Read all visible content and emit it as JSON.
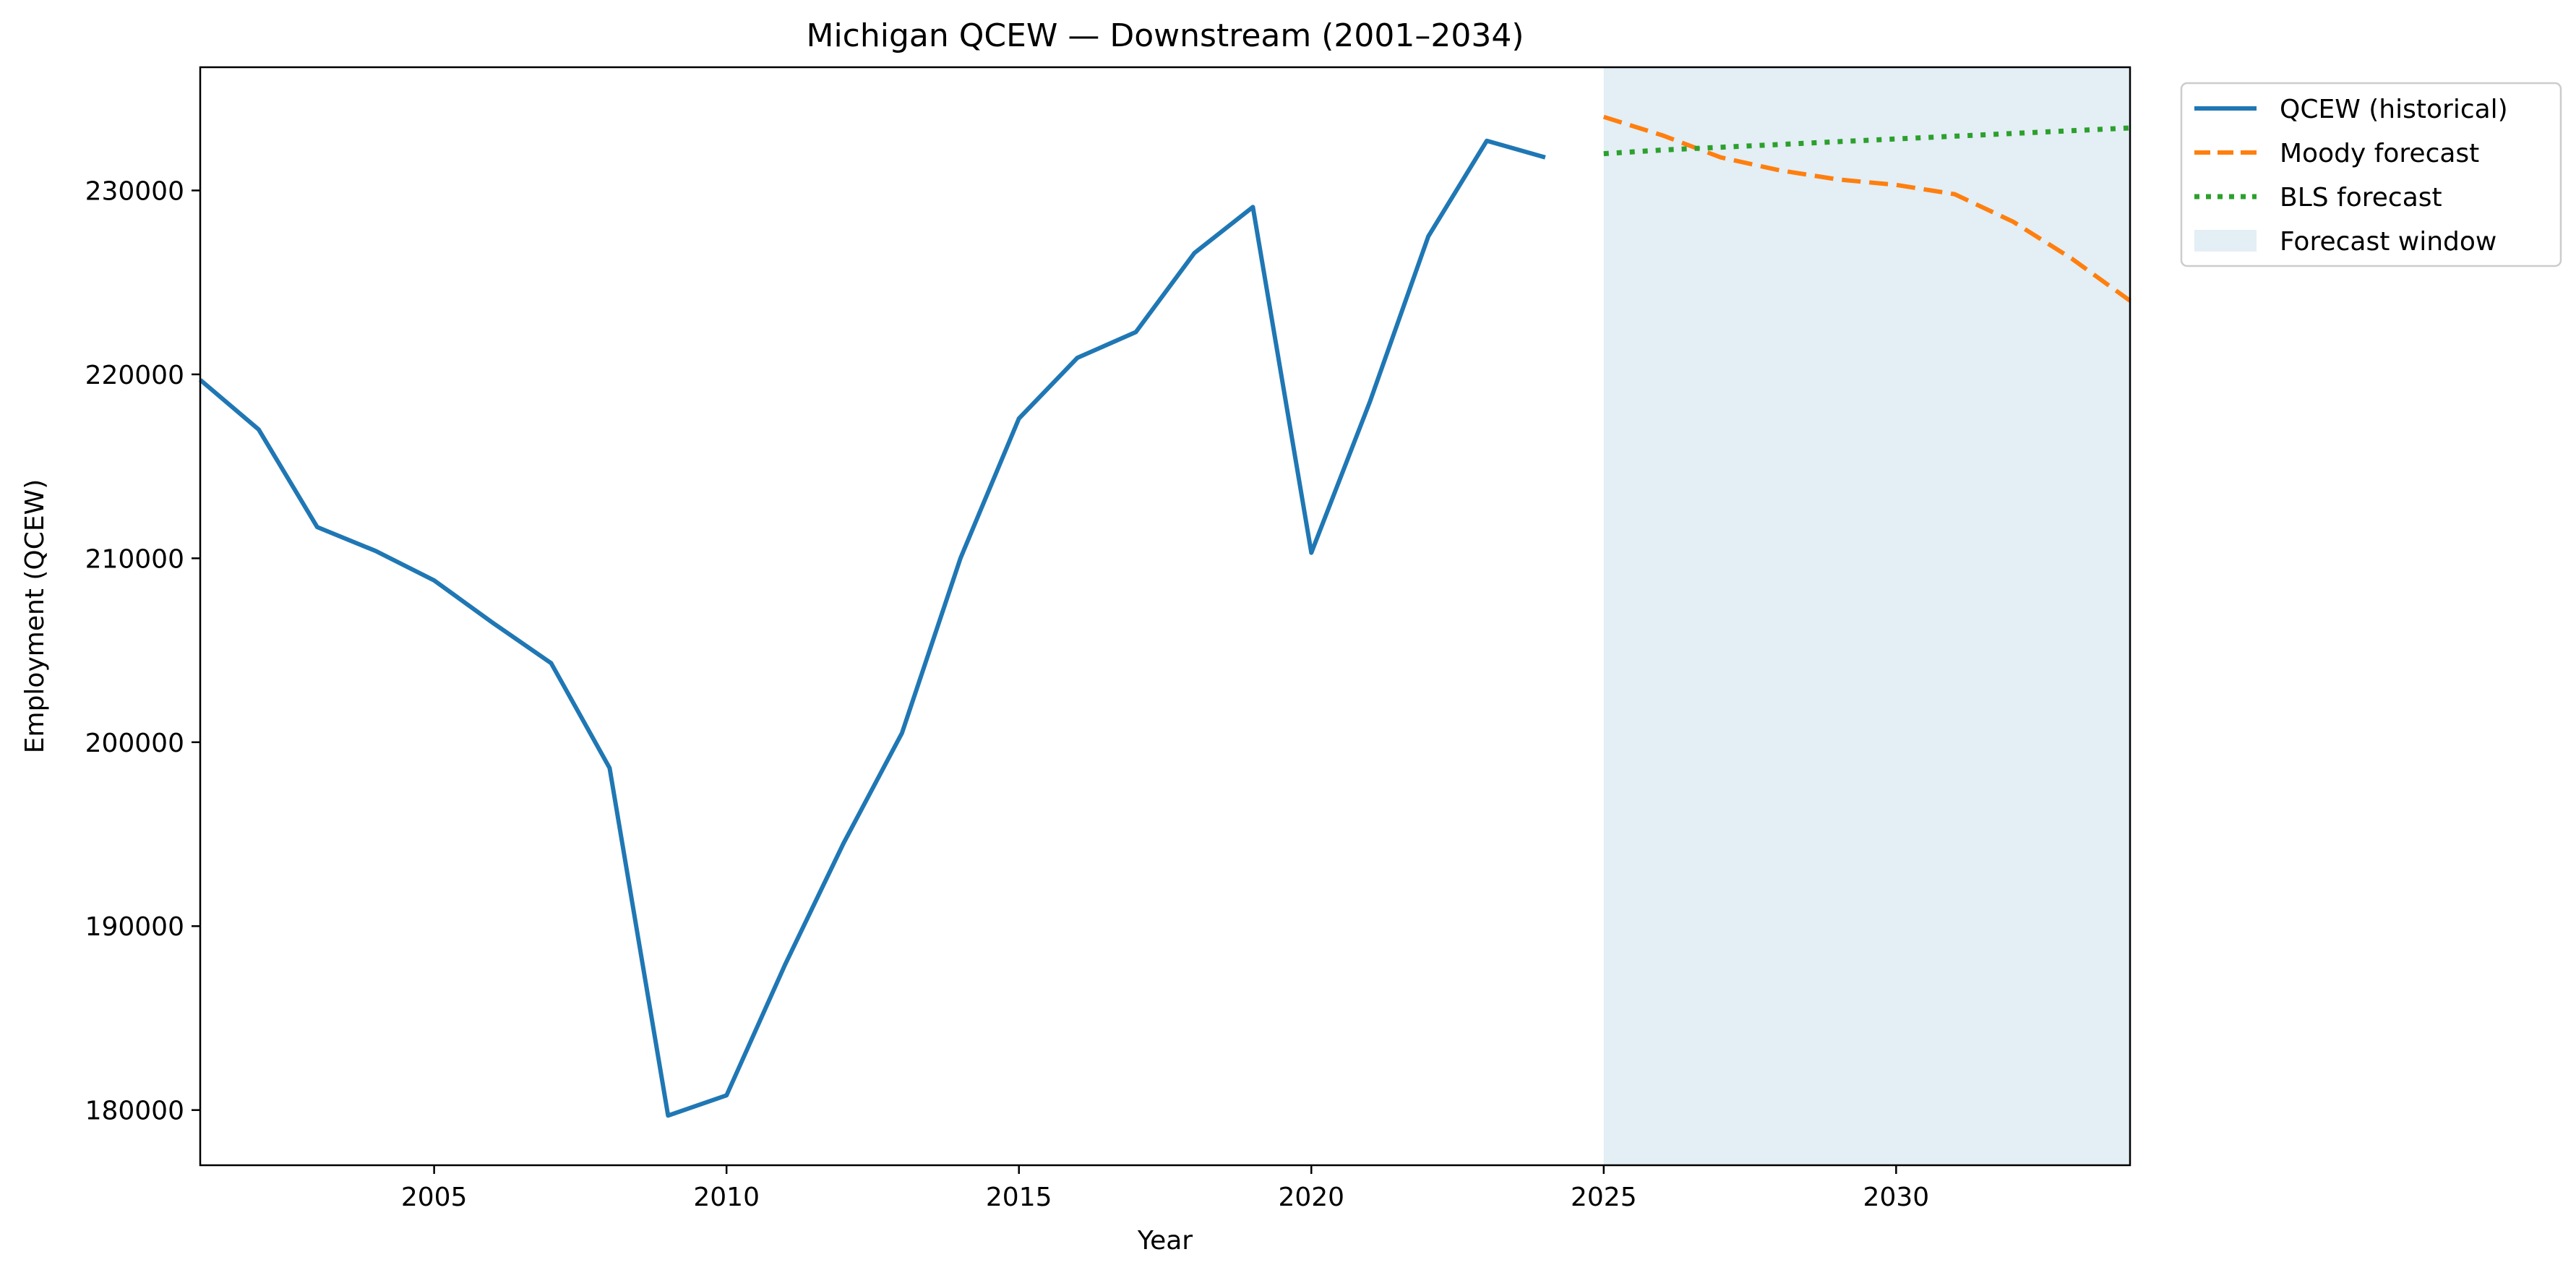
{
  "chart_data": {
    "type": "line",
    "title": "Michigan QCEW — Downstream (2001–2034)",
    "xlabel": "Year",
    "ylabel": "Employment (QCEW)",
    "xlim": [
      2001,
      2034
    ],
    "ylim": [
      177000,
      236700
    ],
    "x_ticks": [
      2005,
      2010,
      2015,
      2020,
      2025,
      2030
    ],
    "y_ticks": [
      180000,
      190000,
      200000,
      210000,
      220000,
      230000
    ],
    "grid": false,
    "legend_position": "outside-top-right",
    "forecast_window": {
      "label": "Forecast window",
      "start": 2025,
      "end": 2034,
      "color": "#e3eef5"
    },
    "series": [
      {
        "name": "QCEW (historical)",
        "style": "solid",
        "color": "#1f77b4",
        "x": [
          2001,
          2002,
          2003,
          2004,
          2005,
          2006,
          2007,
          2008,
          2009,
          2010,
          2011,
          2012,
          2013,
          2014,
          2015,
          2016,
          2017,
          2018,
          2019,
          2020,
          2021,
          2022,
          2023,
          2024
        ],
        "values": [
          219700,
          217000,
          211700,
          210400,
          208800,
          206500,
          204300,
          198600,
          179700,
          180800,
          187900,
          194500,
          200500,
          210000,
          217600,
          220900,
          222300,
          226600,
          229100,
          210300,
          218500,
          227500,
          232700,
          231800
        ]
      },
      {
        "name": "Moody forecast",
        "style": "dashed",
        "color": "#ff7f0e",
        "x": [
          2025,
          2026,
          2027,
          2028,
          2029,
          2030,
          2031,
          2032,
          2033,
          2034
        ],
        "values": [
          234000,
          233000,
          231800,
          231100,
          230600,
          230300,
          229800,
          228300,
          226300,
          224000
        ]
      },
      {
        "name": "BLS forecast",
        "style": "dotted",
        "color": "#2ca02c",
        "x": [
          2025,
          2026,
          2027,
          2028,
          2029,
          2030,
          2031,
          2032,
          2033,
          2034
        ],
        "values": [
          232000,
          232200,
          232350,
          232500,
          232650,
          232800,
          232950,
          233100,
          233250,
          233400
        ]
      }
    ]
  }
}
